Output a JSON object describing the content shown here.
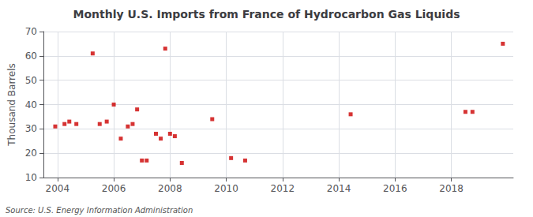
{
  "chart_data": {
    "type": "scatter",
    "title": "Monthly U.S. Imports from France of Hydrocarbon Gas Liquids",
    "ylabel": "Thousand Barrels",
    "source": "Source: U.S. Energy Information Administration",
    "color": "#cc0000",
    "marker": "square",
    "grid": true,
    "xlim": [
      2003.5,
      2020.2
    ],
    "ylim": [
      10,
      70
    ],
    "xticks": [
      2004,
      2006,
      2008,
      2010,
      2012,
      2014,
      2016,
      2018
    ],
    "yticks": [
      10,
      20,
      30,
      40,
      50,
      60,
      70
    ],
    "x": [
      2003.92,
      2004.25,
      2004.42,
      2004.67,
      2005.25,
      2005.5,
      2005.75,
      2006.0,
      2006.25,
      2006.5,
      2006.67,
      2006.83,
      2007.0,
      2007.17,
      2007.5,
      2007.67,
      2007.83,
      2008.0,
      2008.17,
      2008.42,
      2009.5,
      2010.17,
      2010.67,
      2014.42,
      2018.5,
      2018.75,
      2019.83
    ],
    "values": [
      31,
      32,
      33,
      32,
      61,
      32,
      33,
      40,
      26,
      31,
      32,
      38,
      17,
      17,
      28,
      26,
      63,
      28,
      27,
      16,
      34,
      18,
      17,
      36,
      37,
      37,
      65
    ]
  }
}
